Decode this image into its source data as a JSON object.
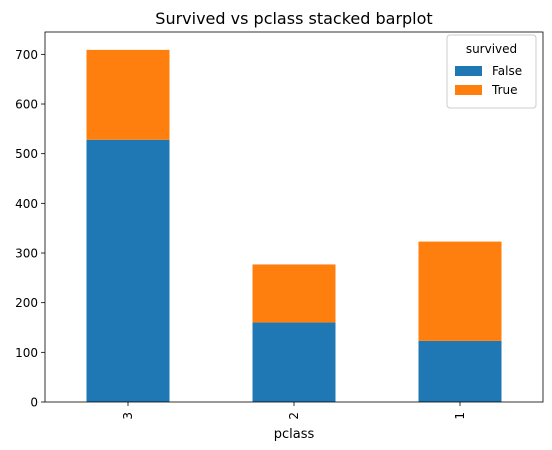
{
  "chart_data": {
    "type": "bar",
    "stacked": true,
    "title": "Survived vs pclass stacked barplot",
    "xlabel": "pclass",
    "ylabel": "",
    "categories": [
      "3",
      "2",
      "1"
    ],
    "series": [
      {
        "name": "False",
        "values": [
          528,
          160,
          123
        ],
        "color": "#1f77b4"
      },
      {
        "name": "True",
        "values": [
          181,
          117,
          200
        ],
        "color": "#ff7f0e"
      }
    ],
    "ylim": [
      0,
      745
    ],
    "yticks": [
      0,
      100,
      200,
      300,
      400,
      500,
      600,
      700
    ],
    "grid": false,
    "legend": {
      "title": "survived",
      "placement": "upper-right"
    }
  }
}
